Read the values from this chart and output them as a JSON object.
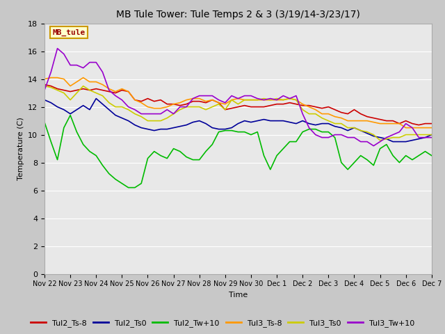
{
  "title": "MB Tule Tower: Tule Temps 2 & 3 (3/19/14-3/23/17)",
  "xlabel": "Time",
  "ylabel": "Temperature (C)",
  "ylim": [
    0,
    18
  ],
  "yticks": [
    0,
    2,
    4,
    6,
    8,
    10,
    12,
    14,
    16,
    18
  ],
  "annotation_text": "MB_tule",
  "annotation_box_color": "#ffffcc",
  "annotation_box_edge": "#cc9900",
  "annotation_text_color": "#990000",
  "fig_bg_color": "#c8c8c8",
  "plot_bg_color": "#e8e8e8",
  "x_tick_labels": [
    "Nov 22",
    "Nov 23",
    "Nov 24",
    "Nov 25",
    "Nov 26",
    "Nov 27",
    "Nov 28",
    "Nov 29",
    "Nov 30",
    "Dec 1",
    "Dec 2",
    "Dec 3",
    "Dec 4",
    "Dec 5",
    "Dec 6",
    "Dec 7"
  ],
  "series": {
    "Tul2_Ts-8": {
      "color": "#cc0000",
      "lw": 1.2,
      "x": [
        0,
        0.25,
        0.5,
        0.75,
        1,
        1.25,
        1.5,
        1.75,
        2,
        2.25,
        2.5,
        2.75,
        3,
        3.25,
        3.5,
        3.75,
        4,
        4.25,
        4.5,
        4.75,
        5,
        5.25,
        5.5,
        5.75,
        6,
        6.25,
        6.5,
        6.75,
        7,
        7.25,
        7.5,
        7.75,
        8,
        8.25,
        8.5,
        8.75,
        9,
        9.25,
        9.5,
        9.75,
        10,
        10.25,
        10.5,
        10.75,
        11,
        11.25,
        11.5,
        11.75,
        12,
        12.25,
        12.5,
        12.75,
        13,
        13.25,
        13.5,
        13.75,
        14,
        14.25,
        14.5,
        14.75,
        15
      ],
      "y": [
        13.6,
        13.5,
        13.3,
        13.2,
        13.1,
        13.2,
        13.3,
        13.2,
        13.3,
        13.2,
        13.1,
        13.0,
        13.2,
        13.1,
        12.5,
        12.4,
        12.6,
        12.4,
        12.5,
        12.2,
        12.2,
        12.1,
        12.2,
        12.4,
        12.4,
        12.3,
        12.5,
        12.3,
        11.8,
        11.9,
        12.0,
        12.1,
        12.0,
        12.0,
        12.0,
        12.1,
        12.2,
        12.2,
        12.3,
        12.2,
        12.1,
        12.1,
        12.0,
        11.9,
        12.0,
        11.8,
        11.6,
        11.5,
        11.8,
        11.5,
        11.3,
        11.2,
        11.1,
        11.0,
        11.0,
        10.8,
        11.0,
        10.8,
        10.7,
        10.8,
        10.8
      ]
    },
    "Tul2_Ts0": {
      "color": "#000099",
      "lw": 1.2,
      "x": [
        0,
        0.25,
        0.5,
        0.75,
        1,
        1.25,
        1.5,
        1.75,
        2,
        2.25,
        2.5,
        2.75,
        3,
        3.25,
        3.5,
        3.75,
        4,
        4.25,
        4.5,
        4.75,
        5,
        5.25,
        5.5,
        5.75,
        6,
        6.25,
        6.5,
        6.75,
        7,
        7.25,
        7.5,
        7.75,
        8,
        8.25,
        8.5,
        8.75,
        9,
        9.25,
        9.5,
        9.75,
        10,
        10.25,
        10.5,
        10.75,
        11,
        11.25,
        11.5,
        11.75,
        12,
        12.25,
        12.5,
        12.75,
        13,
        13.25,
        13.5,
        13.75,
        14,
        14.25,
        14.5,
        14.75,
        15
      ],
      "y": [
        12.5,
        12.3,
        12.0,
        11.8,
        11.5,
        11.8,
        12.1,
        11.8,
        12.6,
        12.2,
        11.8,
        11.4,
        11.2,
        11.0,
        10.7,
        10.5,
        10.4,
        10.3,
        10.4,
        10.4,
        10.5,
        10.6,
        10.7,
        10.9,
        11.0,
        10.8,
        10.5,
        10.4,
        10.4,
        10.5,
        10.8,
        11.0,
        10.9,
        11.0,
        11.1,
        11.0,
        11.0,
        11.0,
        10.9,
        10.8,
        11.0,
        10.8,
        10.7,
        10.8,
        10.8,
        10.6,
        10.5,
        10.3,
        10.5,
        10.3,
        10.1,
        9.9,
        9.8,
        9.7,
        9.5,
        9.5,
        9.5,
        9.6,
        9.7,
        9.8,
        10.0
      ]
    },
    "Tul2_Tw+10": {
      "color": "#00bb00",
      "lw": 1.2,
      "x": [
        0,
        0.25,
        0.5,
        0.75,
        1,
        1.25,
        1.5,
        1.75,
        2,
        2.25,
        2.5,
        2.75,
        3,
        3.25,
        3.5,
        3.75,
        4,
        4.25,
        4.5,
        4.75,
        5,
        5.25,
        5.5,
        5.75,
        6,
        6.25,
        6.5,
        6.75,
        7,
        7.25,
        7.5,
        7.75,
        8,
        8.25,
        8.5,
        8.75,
        9,
        9.25,
        9.5,
        9.75,
        10,
        10.25,
        10.5,
        10.75,
        11,
        11.25,
        11.5,
        11.75,
        12,
        12.25,
        12.5,
        12.75,
        13,
        13.25,
        13.5,
        13.75,
        14,
        14.25,
        14.5,
        14.75,
        15
      ],
      "y": [
        10.9,
        9.5,
        8.2,
        10.5,
        11.4,
        10.2,
        9.3,
        8.8,
        8.5,
        7.8,
        7.2,
        6.8,
        6.5,
        6.2,
        6.2,
        6.5,
        8.3,
        8.8,
        8.5,
        8.3,
        9.0,
        8.8,
        8.4,
        8.2,
        8.2,
        8.8,
        9.3,
        10.2,
        10.3,
        10.3,
        10.2,
        10.2,
        10.0,
        10.2,
        8.5,
        7.5,
        8.5,
        9.0,
        9.5,
        9.5,
        10.2,
        10.4,
        10.4,
        10.2,
        10.2,
        9.8,
        8.0,
        7.5,
        8.0,
        8.5,
        8.2,
        7.8,
        9.0,
        9.3,
        8.5,
        8.0,
        8.5,
        8.2,
        8.5,
        8.8,
        8.5
      ]
    },
    "Tul3_Ts-8": {
      "color": "#ff9900",
      "lw": 1.2,
      "x": [
        0,
        0.25,
        0.5,
        0.75,
        1,
        1.25,
        1.5,
        1.75,
        2,
        2.25,
        2.5,
        2.75,
        3,
        3.25,
        3.5,
        3.75,
        4,
        4.25,
        4.5,
        4.75,
        5,
        5.25,
        5.5,
        5.75,
        6,
        6.25,
        6.5,
        6.75,
        7,
        7.25,
        7.5,
        7.75,
        8,
        8.25,
        8.5,
        8.75,
        9,
        9.25,
        9.5,
        9.75,
        10,
        10.25,
        10.5,
        10.75,
        11,
        11.25,
        11.5,
        11.75,
        12,
        12.25,
        12.5,
        12.75,
        13,
        13.25,
        13.5,
        13.75,
        14,
        14.25,
        14.5,
        14.75,
        15
      ],
      "y": [
        14.0,
        14.1,
        14.1,
        14.0,
        13.5,
        13.8,
        14.1,
        13.8,
        13.8,
        13.6,
        13.3,
        13.1,
        13.3,
        13.1,
        12.5,
        12.3,
        12.0,
        11.9,
        11.9,
        12.0,
        12.2,
        12.3,
        12.5,
        12.6,
        12.6,
        12.4,
        12.5,
        12.3,
        12.2,
        12.5,
        12.6,
        12.5,
        12.5,
        12.5,
        12.5,
        12.5,
        12.5,
        12.5,
        12.6,
        12.5,
        12.2,
        12.0,
        11.8,
        11.5,
        11.5,
        11.3,
        11.2,
        11.0,
        11.0,
        11.0,
        11.0,
        10.9,
        10.8,
        10.8,
        10.8,
        10.8,
        10.5,
        10.5,
        10.5,
        10.5,
        10.5
      ]
    },
    "Tul3_Ts0": {
      "color": "#cccc00",
      "lw": 1.2,
      "x": [
        0,
        0.25,
        0.5,
        0.75,
        1,
        1.25,
        1.5,
        1.75,
        2,
        2.25,
        2.5,
        2.75,
        3,
        3.25,
        3.5,
        3.75,
        4,
        4.25,
        4.5,
        4.75,
        5,
        5.25,
        5.5,
        5.75,
        6,
        6.25,
        6.5,
        6.75,
        7,
        7.25,
        7.5,
        7.75,
        8,
        8.25,
        8.5,
        8.75,
        9,
        9.25,
        9.5,
        9.75,
        10,
        10.25,
        10.5,
        10.75,
        11,
        11.25,
        11.5,
        11.75,
        12,
        12.25,
        12.5,
        12.75,
        13,
        13.25,
        13.5,
        13.75,
        14,
        14.25,
        14.5,
        14.75,
        15
      ],
      "y": [
        13.5,
        13.4,
        13.2,
        13.0,
        12.5,
        13.0,
        13.5,
        13.2,
        13.0,
        12.8,
        12.3,
        12.0,
        12.0,
        11.8,
        11.5,
        11.3,
        11.0,
        11.0,
        11.0,
        11.2,
        11.5,
        11.8,
        12.0,
        12.0,
        12.0,
        11.8,
        12.0,
        12.2,
        11.8,
        12.5,
        12.2,
        12.5,
        12.5,
        12.5,
        12.6,
        12.5,
        12.6,
        12.5,
        12.6,
        12.5,
        11.8,
        11.5,
        11.5,
        11.2,
        11.0,
        10.8,
        10.8,
        10.5,
        10.5,
        10.3,
        10.2,
        10.0,
        9.6,
        9.7,
        9.8,
        9.8,
        10.0,
        10.0,
        10.0,
        10.0,
        10.0
      ]
    },
    "Tul3_Tw+10": {
      "color": "#9900cc",
      "lw": 1.2,
      "x": [
        0,
        0.25,
        0.5,
        0.75,
        1,
        1.25,
        1.5,
        1.75,
        2,
        2.25,
        2.5,
        2.75,
        3,
        3.25,
        3.5,
        3.75,
        4,
        4.25,
        4.5,
        4.75,
        5,
        5.25,
        5.5,
        5.75,
        6,
        6.25,
        6.5,
        6.75,
        7,
        7.25,
        7.5,
        7.75,
        8,
        8.25,
        8.5,
        8.75,
        9,
        9.25,
        9.5,
        9.75,
        10,
        10.25,
        10.5,
        10.75,
        11,
        11.25,
        11.5,
        11.75,
        12,
        12.25,
        12.5,
        12.75,
        13,
        13.25,
        13.5,
        13.75,
        14,
        14.25,
        14.5,
        14.75,
        15
      ],
      "y": [
        13.2,
        14.5,
        16.2,
        15.8,
        15.0,
        15.0,
        14.8,
        15.2,
        15.2,
        14.5,
        13.2,
        12.8,
        12.5,
        12.0,
        11.8,
        11.5,
        11.5,
        11.5,
        11.5,
        11.8,
        11.5,
        12.0,
        12.0,
        12.6,
        12.8,
        12.8,
        12.8,
        12.5,
        12.3,
        12.8,
        12.6,
        12.8,
        12.8,
        12.6,
        12.5,
        12.6,
        12.5,
        12.8,
        12.6,
        12.8,
        11.5,
        10.5,
        10.0,
        9.8,
        9.8,
        10.0,
        10.0,
        9.8,
        9.8,
        9.5,
        9.5,
        9.2,
        9.5,
        9.8,
        10.0,
        10.2,
        10.8,
        10.5,
        9.8,
        9.8,
        9.8
      ]
    }
  }
}
